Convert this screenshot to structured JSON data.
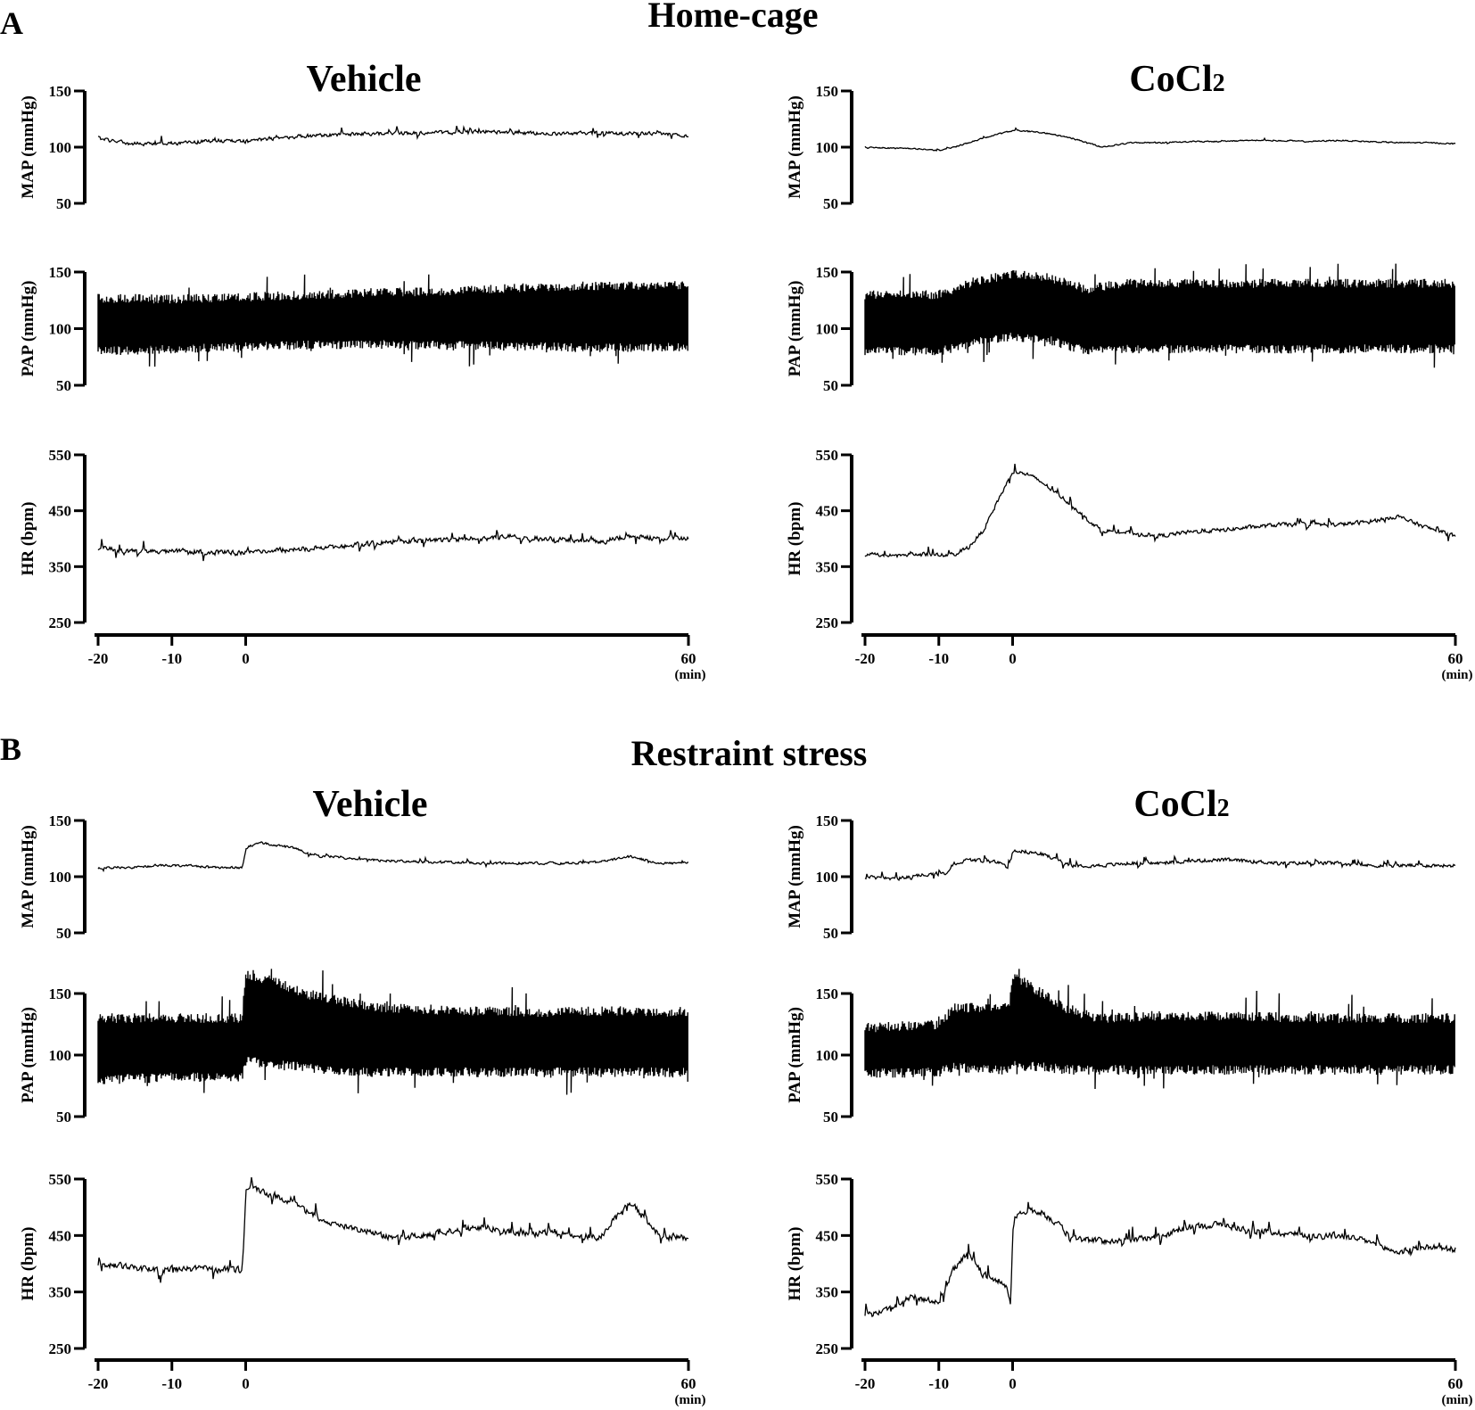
{
  "figure": {
    "panels": [
      {
        "letter": "A",
        "title": "Home-cage"
      },
      {
        "letter": "B",
        "title": "Restraint stress"
      }
    ],
    "conditions": [
      {
        "label": "Vehicle"
      },
      {
        "label_main": "CoCl",
        "label_sub": "2"
      }
    ],
    "x_ticks": [
      "-20",
      "-10",
      "0",
      "60"
    ],
    "x_unit": "(min)"
  },
  "chart_data": [
    {
      "type": "line",
      "panel": "A",
      "condition": "Vehicle",
      "signal": "MAP",
      "ylabel": "MAP (mmHg)",
      "yticks": [
        50,
        100,
        150
      ],
      "ylim": [
        50,
        150
      ],
      "xlim": [
        -20,
        60
      ],
      "x": [
        -20,
        -16,
        -12,
        -8,
        -4,
        0,
        4,
        8,
        12,
        16,
        20,
        24,
        28,
        32,
        36,
        40,
        44,
        48,
        52,
        56,
        60
      ],
      "y": [
        108,
        103,
        103,
        104,
        106,
        105,
        108,
        110,
        111,
        112,
        112,
        113,
        113,
        114,
        113,
        112,
        112,
        113,
        112,
        112,
        110
      ],
      "noise": 2.2,
      "spikes": 0.05
    },
    {
      "type": "line",
      "panel": "A",
      "condition": "CoCl2",
      "signal": "MAP",
      "ylabel": "MAP (mmHg)",
      "yticks": [
        50,
        100,
        150
      ],
      "ylim": [
        50,
        150
      ],
      "xlim": [
        -20,
        60
      ],
      "x": [
        -20,
        -16,
        -12,
        -10,
        -8,
        -4,
        0,
        4,
        8,
        10,
        12,
        16,
        20,
        24,
        28,
        32,
        36,
        40,
        44,
        48,
        52,
        56,
        60
      ],
      "y": [
        100,
        99,
        98,
        97,
        100,
        108,
        115,
        113,
        108,
        104,
        100,
        104,
        104,
        105,
        105,
        106,
        106,
        105,
        106,
        105,
        104,
        104,
        103
      ],
      "noise": 0.8,
      "spikes": 0.02
    },
    {
      "type": "band",
      "panel": "A",
      "condition": "Vehicle",
      "signal": "PAP",
      "ylabel": "PAP (mmHg)",
      "yticks": [
        50,
        100,
        150
      ],
      "ylim": [
        50,
        150
      ],
      "xlim": [
        -20,
        60
      ],
      "x": [
        -20,
        -10,
        0,
        10,
        20,
        30,
        40,
        50,
        60
      ],
      "upper": [
        127,
        126,
        128,
        130,
        132,
        134,
        137,
        138,
        138
      ],
      "lower": [
        80,
        82,
        84,
        86,
        86,
        85,
        84,
        83,
        84
      ]
    },
    {
      "type": "band",
      "panel": "A",
      "condition": "CoCl2",
      "signal": "PAP",
      "ylabel": "PAP (mmHg)",
      "yticks": [
        50,
        100,
        150
      ],
      "ylim": [
        50,
        150
      ],
      "xlim": [
        -20,
        60
      ],
      "x": [
        -20,
        -10,
        -5,
        0,
        5,
        10,
        15,
        20,
        30,
        40,
        50,
        60
      ],
      "upper": [
        130,
        130,
        142,
        148,
        145,
        135,
        140,
        140,
        140,
        140,
        140,
        140
      ],
      "lower": [
        80,
        80,
        88,
        93,
        90,
        80,
        82,
        82,
        82,
        82,
        82,
        82
      ]
    },
    {
      "type": "line",
      "panel": "A",
      "condition": "Vehicle",
      "signal": "HR",
      "ylabel": "HR (bpm)",
      "yticks": [
        250,
        350,
        450,
        550
      ],
      "ylim": [
        250,
        550
      ],
      "xlim": [
        -20,
        60
      ],
      "x": [
        -20,
        -16,
        -12,
        -8,
        -4,
        0,
        4,
        8,
        12,
        16,
        20,
        24,
        28,
        32,
        36,
        40,
        44,
        48,
        52,
        56,
        60
      ],
      "y": [
        385,
        378,
        376,
        378,
        375,
        375,
        380,
        382,
        386,
        390,
        395,
        398,
        398,
        400,
        405,
        400,
        398,
        395,
        405,
        400,
        400
      ],
      "noise": 6,
      "spikes": 0.07
    },
    {
      "type": "line",
      "panel": "A",
      "condition": "CoCl2",
      "signal": "HR",
      "ylabel": "HR (bpm)",
      "yticks": [
        250,
        350,
        450,
        550
      ],
      "ylim": [
        250,
        550
      ],
      "xlim": [
        -20,
        60
      ],
      "x": [
        -20,
        -16,
        -12,
        -10,
        -8,
        -6,
        -4,
        -2,
        0,
        2,
        4,
        6,
        8,
        10,
        12,
        16,
        20,
        24,
        28,
        32,
        36,
        40,
        44,
        48,
        52,
        56,
        60
      ],
      "y": [
        372,
        370,
        372,
        370,
        372,
        385,
        415,
        470,
        520,
        515,
        500,
        480,
        460,
        435,
        415,
        410,
        405,
        412,
        415,
        420,
        425,
        425,
        425,
        430,
        440,
        420,
        405
      ],
      "noise": 5,
      "spikes": 0.05
    },
    {
      "type": "line",
      "panel": "B",
      "condition": "Vehicle",
      "signal": "MAP",
      "ylabel": "MAP (mmHg)",
      "yticks": [
        50,
        100,
        150
      ],
      "ylim": [
        50,
        150
      ],
      "xlim": [
        -20,
        60
      ],
      "x": [
        -20,
        -16,
        -12,
        -8,
        -4,
        -0.5,
        0,
        2,
        4,
        6,
        8,
        10,
        12,
        16,
        20,
        24,
        28,
        32,
        36,
        40,
        44,
        48,
        52,
        56,
        60
      ],
      "y": [
        108,
        108,
        110,
        110,
        108,
        108,
        126,
        130,
        128,
        126,
        122,
        118,
        118,
        115,
        114,
        113,
        113,
        112,
        112,
        112,
        112,
        113,
        118,
        112,
        112
      ],
      "noise": 1.5,
      "spikes": 0.04
    },
    {
      "type": "line",
      "panel": "B",
      "condition": "CoCl2",
      "signal": "MAP",
      "ylabel": "MAP (mmHg)",
      "yticks": [
        50,
        100,
        150
      ],
      "ylim": [
        50,
        150
      ],
      "xlim": [
        -20,
        60
      ],
      "x": [
        -20,
        -16,
        -12,
        -9,
        -8,
        -6,
        -4,
        -2,
        -0.5,
        0,
        2,
        4,
        8,
        12,
        16,
        20,
        24,
        28,
        32,
        36,
        40,
        44,
        48,
        52,
        56,
        60
      ],
      "y": [
        100,
        98,
        102,
        103,
        112,
        115,
        114,
        113,
        108,
        124,
        122,
        120,
        110,
        110,
        112,
        112,
        114,
        115,
        114,
        112,
        112,
        112,
        110,
        110,
        110,
        110
      ],
      "noise": 2.2,
      "spikes": 0.08
    },
    {
      "type": "band",
      "panel": "B",
      "condition": "Vehicle",
      "signal": "PAP",
      "ylabel": "PAP (mmHg)",
      "yticks": [
        50,
        100,
        150
      ],
      "ylim": [
        50,
        150
      ],
      "xlim": [
        -20,
        60
      ],
      "x": [
        -20,
        -10,
        -0.5,
        0,
        4,
        8,
        12,
        16,
        20,
        30,
        40,
        50,
        60
      ],
      "upper": [
        130,
        130,
        130,
        165,
        160,
        150,
        145,
        140,
        138,
        136,
        135,
        136,
        135
      ],
      "lower": [
        80,
        82,
        82,
        95,
        92,
        90,
        88,
        86,
        86,
        86,
        86,
        86,
        86
      ]
    },
    {
      "type": "band",
      "panel": "B",
      "condition": "CoCl2",
      "signal": "PAP",
      "ylabel": "PAP (mmHg)",
      "yticks": [
        50,
        100,
        150
      ],
      "ylim": [
        50,
        150
      ],
      "xlim": [
        -20,
        60
      ],
      "x": [
        -20,
        -10,
        -8,
        -0.5,
        0,
        4,
        8,
        12,
        20,
        30,
        40,
        50,
        60
      ],
      "upper": [
        122,
        125,
        138,
        140,
        165,
        150,
        135,
        130,
        132,
        132,
        130,
        130,
        130
      ],
      "lower": [
        85,
        86,
        90,
        88,
        92,
        90,
        88,
        88,
        88,
        88,
        88,
        88,
        88
      ]
    },
    {
      "type": "line",
      "panel": "B",
      "condition": "Vehicle",
      "signal": "HR",
      "ylabel": "HR (bpm)",
      "yticks": [
        250,
        350,
        450,
        550
      ],
      "ylim": [
        250,
        550
      ],
      "xlim": [
        -20,
        60
      ],
      "x": [
        -20,
        -16,
        -12,
        -8,
        -4,
        -0.5,
        0,
        2,
        4,
        6,
        8,
        10,
        12,
        16,
        20,
        24,
        28,
        32,
        36,
        40,
        44,
        48,
        52,
        56,
        60
      ],
      "y": [
        400,
        395,
        388,
        392,
        390,
        388,
        540,
        530,
        520,
        510,
        495,
        480,
        470,
        460,
        445,
        450,
        460,
        465,
        455,
        455,
        450,
        448,
        510,
        450,
        445
      ],
      "noise": 8,
      "spikes": 0.08
    },
    {
      "type": "line",
      "panel": "B",
      "condition": "CoCl2",
      "signal": "HR",
      "ylabel": "HR (bpm)",
      "yticks": [
        250,
        350,
        450,
        550
      ],
      "ylim": [
        250,
        550
      ],
      "xlim": [
        -20,
        60
      ],
      "x": [
        -20,
        -18,
        -16,
        -14,
        -12,
        -10,
        -8,
        -6,
        -4,
        -2,
        -1,
        -0.3,
        0,
        2,
        4,
        6,
        8,
        12,
        16,
        20,
        24,
        28,
        32,
        36,
        40,
        44,
        48,
        52,
        56,
        60
      ],
      "y": [
        310,
        312,
        325,
        340,
        338,
        330,
        390,
        420,
        380,
        372,
        360,
        330,
        480,
        495,
        490,
        470,
        445,
        440,
        442,
        448,
        465,
        470,
        460,
        455,
        450,
        450,
        440,
        420,
        430,
        425
      ],
      "noise": 8,
      "spikes": 0.08
    }
  ]
}
